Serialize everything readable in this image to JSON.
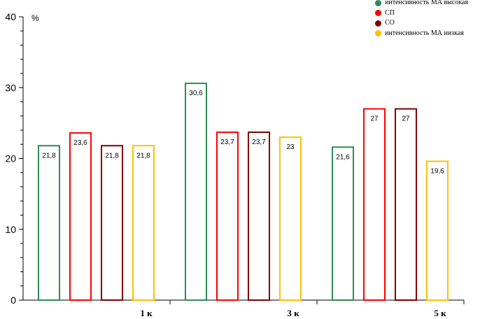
{
  "chart_data": {
    "type": "bar",
    "ylabel": "%",
    "ylim": [
      0,
      40
    ],
    "yticks": [
      "0",
      "10",
      "20",
      "30",
      "40"
    ],
    "categories": [
      "1 к",
      "3 к",
      "5 к"
    ],
    "grid": false,
    "legend_position": "top-right",
    "series": [
      {
        "name": "интенсивность МА высокая",
        "color": "#2e8b57",
        "values": [
          21.8,
          30.6,
          21.6
        ],
        "labels": [
          "21,8",
          "30,6",
          "21,6"
        ]
      },
      {
        "name": "СП",
        "color": "#ff0000",
        "values": [
          23.6,
          23.7,
          27
        ],
        "labels": [
          "23,6",
          "23,7",
          "27"
        ]
      },
      {
        "name": "СО",
        "color": "#800000",
        "values": [
          21.8,
          23.7,
          27
        ],
        "labels": [
          "21,8",
          "23,7",
          "27"
        ]
      },
      {
        "name": "интенсивность МА низкая",
        "color": "#ffc000",
        "values": [
          21.8,
          23,
          19.6
        ],
        "labels": [
          "21,8",
          "23",
          "19,6"
        ]
      }
    ]
  }
}
